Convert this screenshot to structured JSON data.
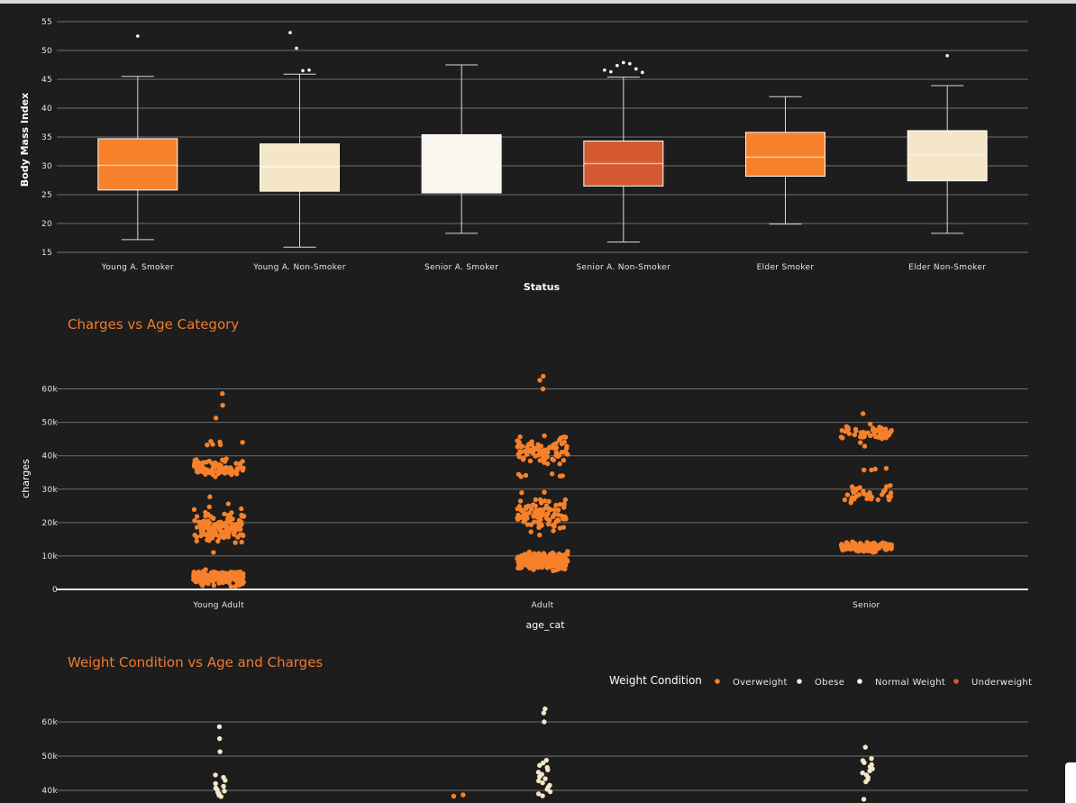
{
  "chart_data": [
    {
      "type": "box",
      "title": "",
      "xlabel": "Status",
      "ylabel": "Body Mass Index",
      "ylim": [
        15,
        55
      ],
      "yticks": [
        15,
        20,
        25,
        30,
        35,
        40,
        45,
        50,
        55
      ],
      "grid": true,
      "categories": [
        "Young A. Smoker",
        "Young A. Non-Smoker",
        "Senior A. Smoker",
        "Senior A. Non-Smoker",
        "Elder Smoker",
        "Elder Non-Smoker"
      ],
      "colors": [
        "#f7812a",
        "#f5e6c8",
        "#fbf6ee",
        "#d55a31",
        "#f7812a",
        "#f5e6c8"
      ],
      "boxes": [
        {
          "min": 17.2,
          "q1": 25.8,
          "median": 30.1,
          "q3": 34.7,
          "max": 45.5,
          "outliers": [
            52.5
          ]
        },
        {
          "min": 15.9,
          "q1": 25.6,
          "median": 29.8,
          "q3": 33.8,
          "max": 45.9,
          "outliers": [
            53.1,
            50.4,
            46.5,
            46.6
          ]
        },
        {
          "min": 18.3,
          "q1": 25.3,
          "median": 30.0,
          "q3": 35.4,
          "max": 47.5,
          "outliers": []
        },
        {
          "min": 16.8,
          "q1": 26.5,
          "median": 30.4,
          "q3": 34.3,
          "max": 45.4,
          "outliers": [
            46.6,
            46.3,
            47.4,
            47.9,
            47.7,
            46.8,
            46.2
          ]
        },
        {
          "min": 19.9,
          "q1": 28.2,
          "median": 31.5,
          "q3": 35.8,
          "max": 42.0,
          "outliers": []
        },
        {
          "min": 18.3,
          "q1": 27.4,
          "median": 31.9,
          "q3": 36.1,
          "max": 43.9,
          "outliers": [
            49.1
          ]
        }
      ]
    },
    {
      "type": "scatter",
      "title": "Charges vs Age Category",
      "xlabel": "age_cat",
      "ylabel": "charges",
      "ylim": [
        0,
        65000
      ],
      "yticks": [
        0,
        10000,
        20000,
        30000,
        40000,
        50000,
        60000
      ],
      "ytick_labels": [
        "0",
        "10k",
        "20k",
        "30k",
        "40k",
        "50k",
        "60k"
      ],
      "categories": [
        "Young Adult",
        "Adult",
        "Senior"
      ],
      "color": "#f7812a",
      "clusters": [
        [
          {
            "center": 3500,
            "spread": 1700,
            "count": 230
          },
          {
            "center": 18500,
            "spread": 4200,
            "count": 130
          },
          {
            "center": 36500,
            "spread": 2300,
            "count": 75
          },
          {
            "center": 43500,
            "spread": 1200,
            "count": 6
          }
        ],
        [
          {
            "center": 8500,
            "spread": 2200,
            "count": 230
          },
          {
            "center": 22500,
            "spread": 4300,
            "count": 100
          },
          {
            "center": 41500,
            "spread": 3300,
            "count": 90
          },
          {
            "center": 34000,
            "spread": 1500,
            "count": 6
          }
        ],
        [
          {
            "center": 12800,
            "spread": 1300,
            "count": 120
          },
          {
            "center": 28500,
            "spread": 2800,
            "count": 35
          },
          {
            "center": 46500,
            "spread": 2300,
            "count": 50
          },
          {
            "center": 36000,
            "spread": 600,
            "count": 4
          }
        ]
      ],
      "outliers": [
        [
          51300,
          55100,
          58600
        ],
        [
          60000,
          62600,
          63800
        ],
        [
          52600
        ]
      ]
    },
    {
      "type": "scatter",
      "title": "Weight Condition vs Age and Charges",
      "xlabel": "",
      "ylabel": "",
      "ylim": [
        0,
        65000
      ],
      "yticks": [
        40000,
        50000,
        60000
      ],
      "ytick_labels": [
        "40k",
        "50k",
        "60k"
      ],
      "legend": {
        "title": "Weight Condition",
        "placement": "top-right",
        "items": [
          {
            "label": "Overweight",
            "color": "#f7812a"
          },
          {
            "label": "Obese",
            "color": "#f5e6c8"
          },
          {
            "label": "Normal Weight",
            "color": "#fbf6ee"
          },
          {
            "label": "Underweight",
            "color": "#d55a31"
          }
        ]
      },
      "visible_points": [
        {
          "category": 0,
          "series": "Obese",
          "y": [
            58600,
            55100,
            51300,
            44500,
            43800,
            42900,
            42000,
            41200,
            40700,
            40200,
            39800,
            39400,
            39000,
            38600,
            38200
          ]
        },
        {
          "category": 1,
          "series": "Obese",
          "y": [
            63800,
            62600,
            60000,
            48800,
            48000,
            47300,
            46700,
            46000,
            45300,
            44700,
            44000,
            43400,
            42800,
            42200,
            41500,
            40900,
            40300,
            39600,
            39000,
            38400
          ]
        },
        {
          "category": 1,
          "series": "Overweight",
          "y": [
            38700,
            38300
          ]
        },
        {
          "category": 2,
          "series": "Obese",
          "y": [
            52600,
            49300,
            48700,
            48100,
            47500,
            46900,
            46300,
            45700,
            45100,
            44500,
            43800,
            43200,
            42500,
            37400
          ]
        }
      ]
    }
  ]
}
